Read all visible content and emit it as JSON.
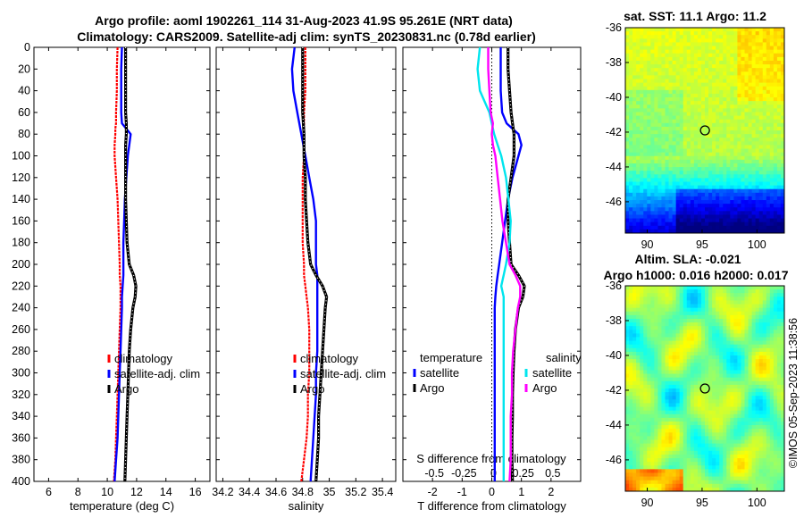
{
  "title": {
    "line1": "Argo profile: aoml 1902261_114 31-Aug-2023 41.9S 95.261E (NRT data)",
    "line2": "Climatology: CARS2009. Satellite-adj clim: synTS_20230831.nc (0.78d earlier)"
  },
  "watermark": "©IMOS 05-Sep-2023 11:38:56",
  "colors": {
    "climatology": "#ff0000",
    "satellite": "#0000ff",
    "argo": "#000000",
    "sal_sat": "#00e5ee",
    "sal_argo": "#ff00ff"
  },
  "chart_data": [
    {
      "id": "temperature",
      "type": "line",
      "xlabel": "temperature (deg C)",
      "ylabel": "",
      "xlim": [
        5,
        17
      ],
      "ylim": [
        400,
        0
      ],
      "xticks": [
        6,
        8,
        10,
        12,
        14,
        16
      ],
      "yticks": [
        0,
        20,
        40,
        60,
        80,
        100,
        120,
        140,
        160,
        180,
        200,
        220,
        240,
        260,
        280,
        300,
        320,
        340,
        360,
        380,
        400
      ],
      "depth": [
        0,
        20,
        40,
        60,
        70,
        75,
        80,
        90,
        100,
        120,
        140,
        160,
        180,
        200,
        210,
        220,
        230,
        240,
        260,
        280,
        300,
        320,
        340,
        360,
        380,
        400
      ],
      "series": [
        {
          "name": "climatology",
          "color": "#ff0000",
          "values": [
            10.7,
            10.65,
            10.65,
            10.6,
            10.6,
            10.55,
            10.55,
            10.5,
            10.5,
            10.6,
            10.7,
            10.75,
            10.8,
            10.85,
            10.85,
            10.9,
            10.9,
            10.9,
            10.85,
            10.8,
            10.75,
            10.7,
            10.65,
            10.6,
            10.55,
            10.45
          ]
        },
        {
          "name": "satellite-adj. clim",
          "color": "#0000ff",
          "values": [
            11.0,
            10.95,
            10.95,
            10.95,
            11.0,
            11.3,
            11.6,
            11.5,
            11.4,
            11.3,
            11.2,
            11.15,
            11.1,
            11.1,
            11.1,
            11.05,
            11.0,
            11.0,
            10.95,
            10.9,
            10.85,
            10.8,
            10.75,
            10.7,
            10.6,
            10.5
          ]
        },
        {
          "name": "Argo",
          "color": "#000000",
          "values": [
            11.25,
            11.25,
            11.25,
            11.25,
            11.3,
            11.3,
            11.3,
            11.25,
            11.25,
            11.25,
            11.25,
            11.3,
            11.35,
            11.5,
            11.8,
            11.95,
            11.9,
            11.75,
            11.6,
            11.5,
            11.45,
            11.4,
            11.35,
            11.3,
            11.25,
            11.2
          ]
        }
      ],
      "legend": [
        "climatology",
        "satellite-adj. clim",
        "Argo"
      ]
    },
    {
      "id": "salinity",
      "type": "line",
      "xlabel": "salinity",
      "ylabel": "",
      "xlim": [
        34.15,
        35.5
      ],
      "ylim": [
        400,
        0
      ],
      "xticks": [
        "34.2",
        "34.4",
        "34.6",
        "34.8",
        "35",
        "35.2",
        "35.4"
      ],
      "depth": [
        0,
        20,
        40,
        60,
        80,
        100,
        120,
        140,
        160,
        180,
        200,
        210,
        220,
        230,
        240,
        260,
        280,
        300,
        320,
        340,
        360,
        380,
        400
      ],
      "series": [
        {
          "name": "climatology",
          "color": "#ff0000",
          "values": [
            34.82,
            34.82,
            34.82,
            34.81,
            34.81,
            34.81,
            34.8,
            34.8,
            34.8,
            34.8,
            34.81,
            34.81,
            34.82,
            34.83,
            34.84,
            34.85,
            34.85,
            34.85,
            34.84,
            34.84,
            34.83,
            34.81,
            34.79
          ]
        },
        {
          "name": "satellite-adj. clim",
          "color": "#0000ff",
          "values": [
            34.74,
            34.72,
            34.73,
            34.76,
            34.79,
            34.82,
            34.85,
            34.88,
            34.9,
            34.9,
            34.9,
            34.91,
            34.91,
            34.91,
            34.91,
            34.91,
            34.91,
            34.9,
            34.9,
            34.89,
            34.88,
            34.87,
            34.86
          ]
        },
        {
          "name": "Argo",
          "color": "#000000",
          "values": [
            34.8,
            34.8,
            34.8,
            34.8,
            34.81,
            34.81,
            34.82,
            34.82,
            34.83,
            34.84,
            34.86,
            34.9,
            34.95,
            34.98,
            34.97,
            34.96,
            34.95,
            34.94,
            34.93,
            34.92,
            34.92,
            34.91,
            34.9
          ]
        }
      ],
      "legend": [
        "climatology",
        "satellite-adj. clim",
        "Argo"
      ]
    },
    {
      "id": "difference",
      "type": "line",
      "xlabel": "T difference from climatology",
      "xlabel_top": "S difference from climatology",
      "xlim": [
        -3,
        3
      ],
      "ylim": [
        400,
        0
      ],
      "xticks": [
        -2,
        -1,
        0,
        1,
        2
      ],
      "s_ticks": [
        "-0.5",
        "-0.25",
        "0",
        "0.25",
        "0.5"
      ],
      "depth_t": [
        0,
        20,
        40,
        60,
        70,
        80,
        90,
        100,
        120,
        140,
        160,
        180,
        200,
        210,
        220,
        230,
        240,
        260,
        280,
        300,
        320,
        340,
        360,
        380,
        400
      ],
      "depth_s": [
        0,
        20,
        40,
        60,
        70,
        80,
        90,
        100,
        120,
        140,
        160,
        180,
        200,
        210,
        220,
        230,
        240,
        260,
        280,
        300,
        320,
        340,
        360,
        380,
        400
      ],
      "series": [
        {
          "name": "temperature satellite",
          "group": "T",
          "color": "#0000ff",
          "values": [
            0.3,
            0.3,
            0.3,
            0.35,
            0.5,
            0.9,
            1.0,
            0.9,
            0.7,
            0.55,
            0.45,
            0.35,
            0.25,
            0.2,
            0.15,
            0.12,
            0.1,
            0.1,
            0.1,
            0.1,
            0.1,
            0.1,
            0.1,
            0.1,
            0.1
          ]
        },
        {
          "name": "temperature Argo",
          "group": "T",
          "color": "#000000",
          "values": [
            0.55,
            0.55,
            0.6,
            0.65,
            0.7,
            0.75,
            0.75,
            0.75,
            0.65,
            0.55,
            0.55,
            0.6,
            0.65,
            0.9,
            1.1,
            1.05,
            0.9,
            0.8,
            0.75,
            0.72,
            0.7,
            0.7,
            0.68,
            0.68,
            0.7
          ]
        },
        {
          "name": "salinity satellite",
          "group": "S",
          "color": "#00e5ee",
          "values": [
            -0.1,
            -0.12,
            -0.1,
            -0.02,
            0.0,
            0.02,
            0.05,
            0.08,
            0.12,
            0.14,
            0.16,
            0.15,
            0.12,
            0.1,
            0.08,
            0.1,
            0.1,
            0.1,
            0.1,
            0.1,
            0.1,
            0.1,
            0.1,
            0.1,
            0.1
          ]
        },
        {
          "name": "salinity Argo",
          "group": "S",
          "color": "#ff00ff",
          "values": [
            -0.03,
            -0.03,
            -0.02,
            -0.01,
            0.01,
            0.0,
            0.01,
            0.03,
            0.05,
            0.07,
            0.09,
            0.12,
            0.15,
            0.2,
            0.24,
            0.24,
            0.22,
            0.2,
            0.18,
            0.17,
            0.17,
            0.16,
            0.16,
            0.16,
            0.15
          ]
        }
      ],
      "legend_t": {
        "title": "temperature",
        "items": [
          "satellite",
          "Argo"
        ]
      },
      "legend_s": {
        "title": "salinity",
        "items": [
          "satellite",
          "Argo"
        ]
      }
    },
    {
      "id": "sst-map",
      "type": "heatmap",
      "title": "sat. SST: 11.1 Argo: 11.2",
      "xlim": [
        88,
        102.5
      ],
      "ylim": [
        -47.8,
        -36
      ],
      "xticks": [
        90,
        95,
        100
      ],
      "yticks": [
        -36,
        -38,
        -40,
        -42,
        -44,
        -46
      ],
      "marker": [
        95.261,
        -41.9
      ]
    },
    {
      "id": "sla-map",
      "type": "heatmap",
      "title": "Altim. SLA: -0.021",
      "subtitle": "Argo h1000: 0.016 h2000: 0.017",
      "xlim": [
        88,
        102.5
      ],
      "ylim": [
        -47.8,
        -36
      ],
      "xticks": [
        90,
        95,
        100
      ],
      "yticks": [
        -36,
        -38,
        -40,
        -42,
        -44,
        -46
      ],
      "marker": [
        95.261,
        -41.9
      ]
    }
  ]
}
